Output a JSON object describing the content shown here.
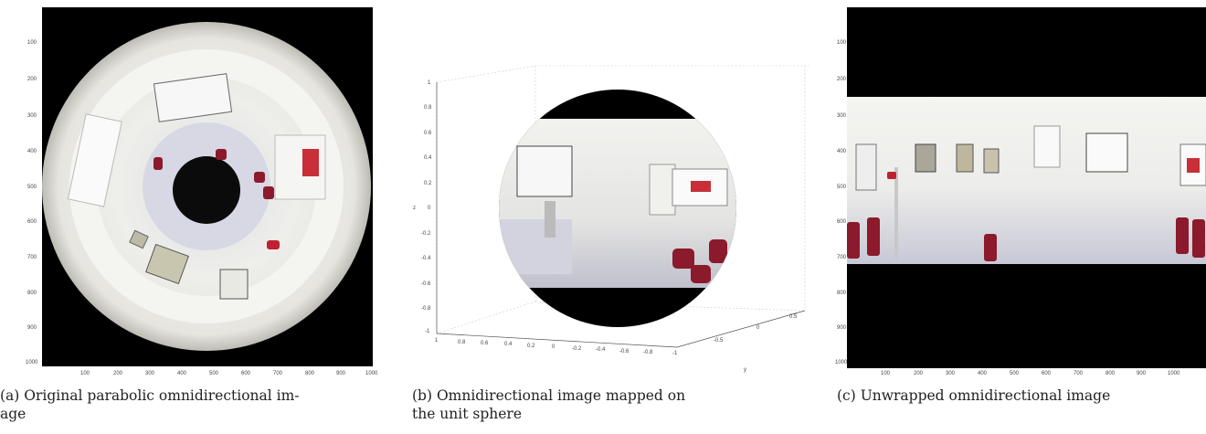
{
  "panels": [
    {
      "caption": "(a) Original parabolic omnidirectional image",
      "caption_line1": "(a) Original parabolic omnidirectional im-",
      "caption_line2": "age",
      "y_ticks": [
        "100",
        "200",
        "300",
        "400",
        "500",
        "600",
        "700",
        "800",
        "900",
        "1000"
      ],
      "x_ticks": [
        "100",
        "200",
        "300",
        "400",
        "500",
        "600",
        "700",
        "800",
        "900",
        "1000"
      ]
    },
    {
      "caption": "(b) Omnidirectional image mapped on the unit sphere",
      "caption_line1": "(b)  Omnidirectional  image  mapped  on",
      "caption_line2": "the unit sphere",
      "z_label": "z",
      "y_label": "y",
      "z_ticks": [
        "1",
        "0.8",
        "0.6",
        "0.4",
        "0.2",
        "0",
        "-0.2",
        "-0.4",
        "-0.6",
        "-0.8",
        "-1"
      ],
      "x_ticks": [
        "1",
        "0.8",
        "0.6",
        "0.4",
        "0.2",
        "0",
        "-0.2",
        "-0.4",
        "-0.6",
        "-0.8"
      ],
      "y_ticks": [
        "-1",
        "-0.5",
        "0",
        "0.5"
      ]
    },
    {
      "caption": "(c) Unwrapped omnidirectional image",
      "y_ticks": [
        "100",
        "200",
        "300",
        "400",
        "500",
        "600",
        "700",
        "800",
        "900",
        "1000"
      ],
      "x_ticks": [
        "100",
        "200",
        "300",
        "400",
        "500",
        "600",
        "700",
        "800",
        "900",
        "1000"
      ]
    }
  ],
  "colors": {
    "chair": "#8b1a2c",
    "black": "#000000",
    "wall": "#e9e8e2"
  }
}
